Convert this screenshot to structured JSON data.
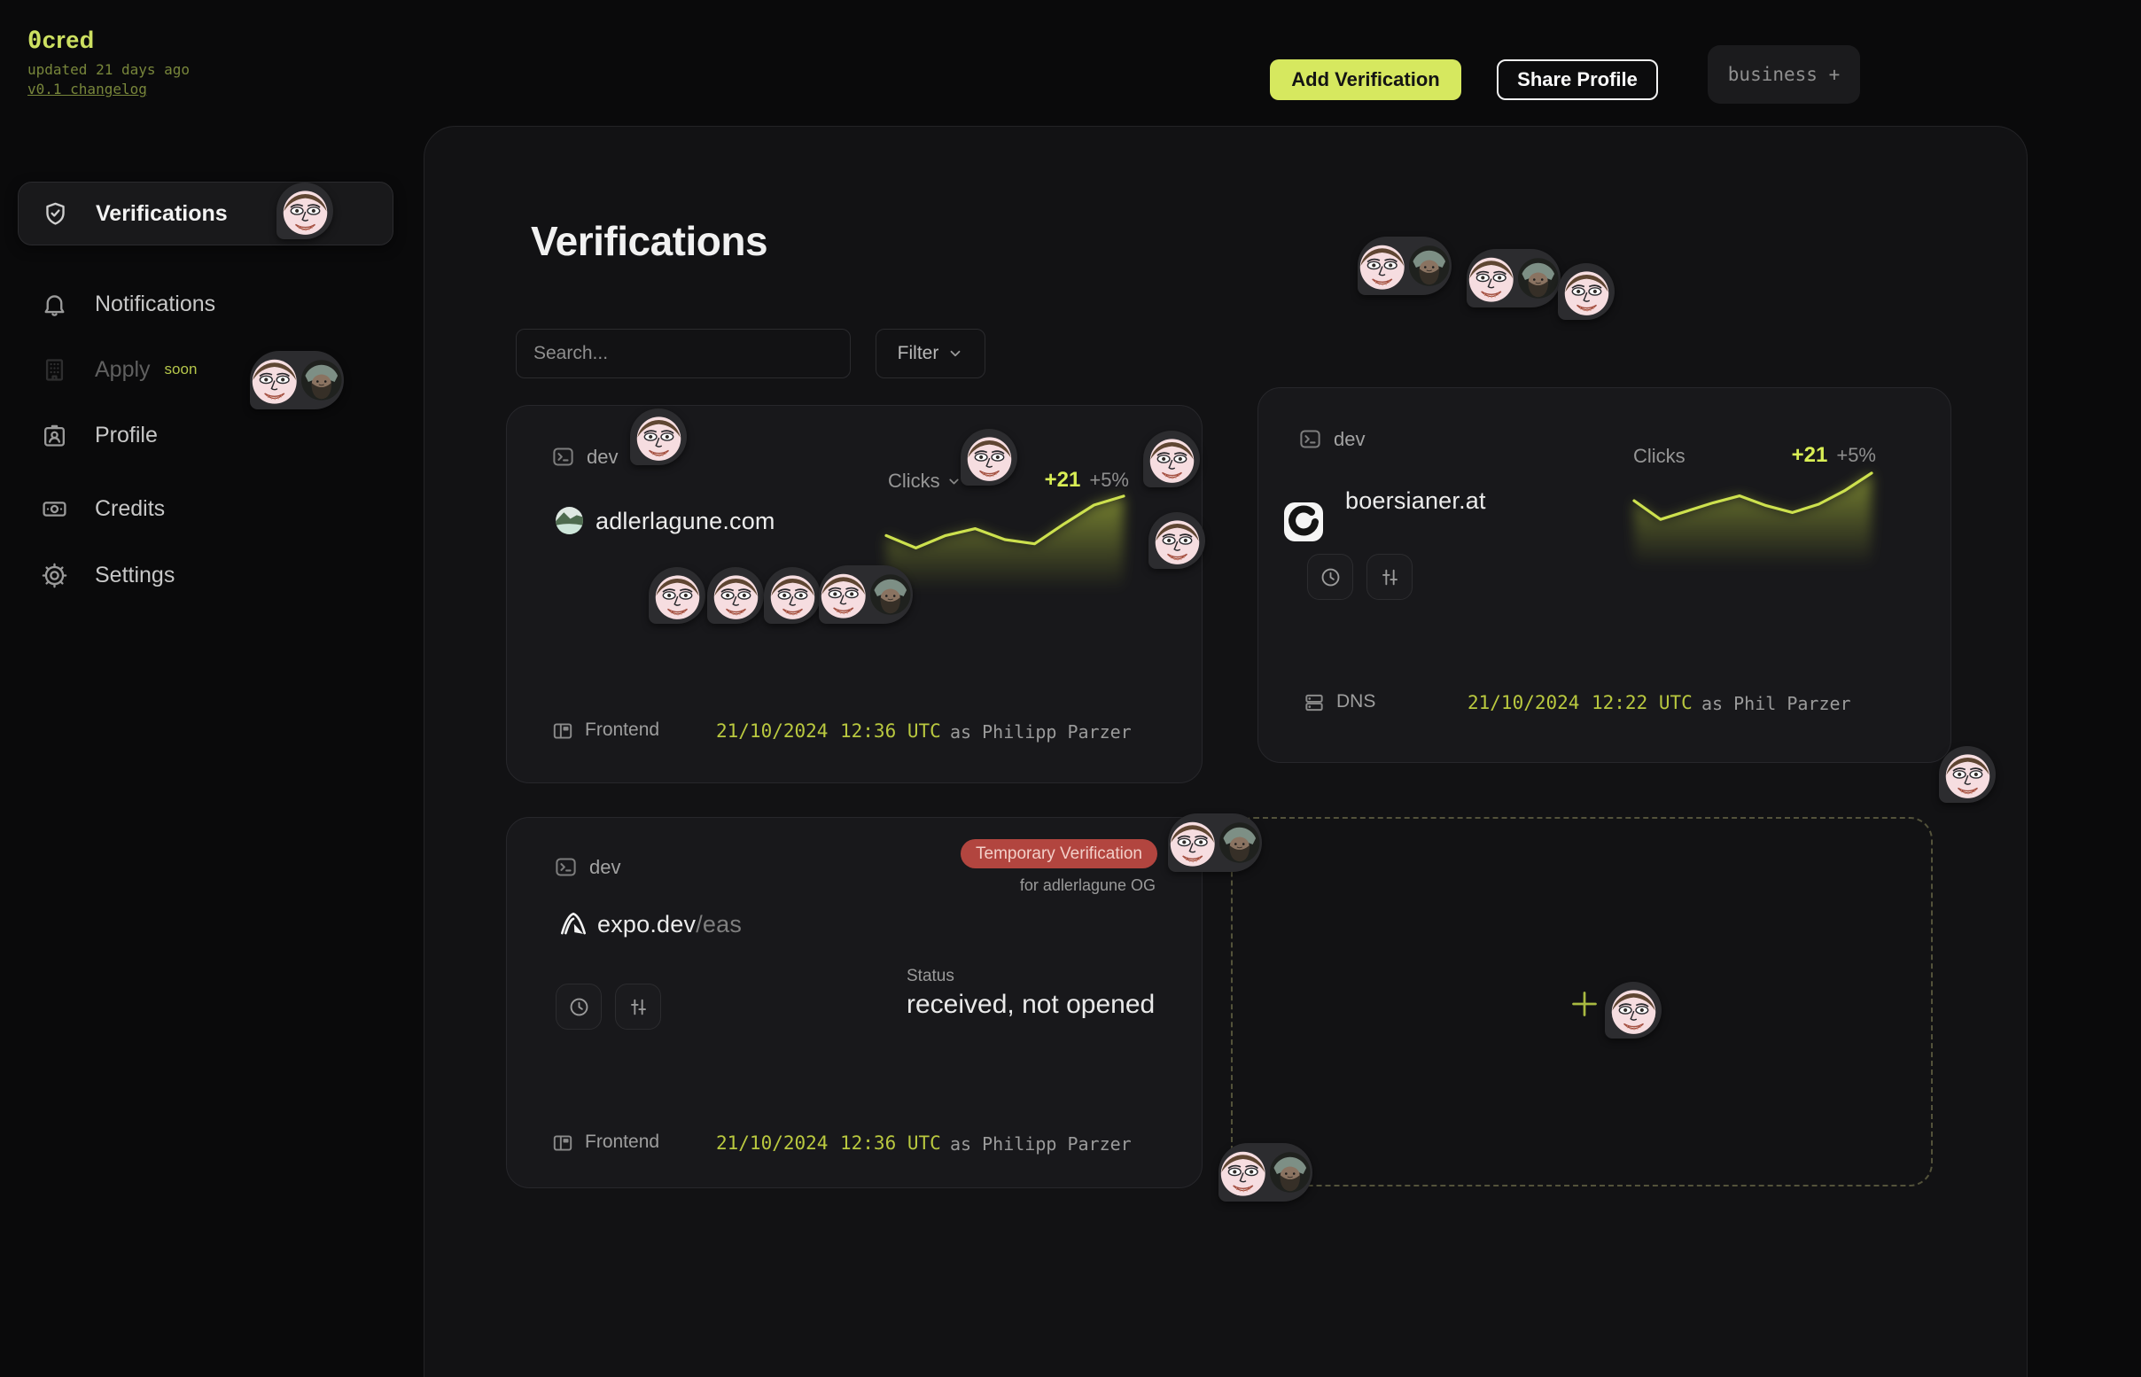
{
  "brand": {
    "logo_zero": "0",
    "logo_rest": "cred",
    "updated": "updated 21 days ago",
    "changelog": "v0.1 changelog"
  },
  "header": {
    "add_verification": "Add Verification",
    "share_profile": "Share Profile",
    "business": "business +"
  },
  "sidebar": {
    "items": [
      {
        "label": "Verifications",
        "icon": "shield-check-icon",
        "active": true
      },
      {
        "label": "Notifications",
        "icon": "bell-icon"
      },
      {
        "label": "Apply",
        "icon": "building-icon",
        "badge": "soon",
        "disabled": true
      },
      {
        "label": "Profile",
        "icon": "id-card-icon"
      },
      {
        "label": "Credits",
        "icon": "banknote-icon"
      },
      {
        "label": "Settings",
        "icon": "gear-icon"
      }
    ]
  },
  "main": {
    "title": "Verifications",
    "search_placeholder": "Search...",
    "filter_label": "Filter"
  },
  "colors": {
    "accent": "#d6e85f",
    "spark_line": "#cde14e",
    "delta": "#d9ee55",
    "date": "#bac93f",
    "badge_red_bg": "#b2453f",
    "badge_red_text": "#f3cfc8"
  },
  "cards": [
    {
      "env": "dev",
      "domain": "adlerlagune.com",
      "metric_label": "Clicks",
      "delta": "+21",
      "delta_pct": "+5%",
      "source": "Frontend",
      "date": "21/10/2024",
      "time": "12:36 UTC",
      "as_author": "as Philipp Parzer",
      "trend": [
        0.62,
        0.8,
        0.62,
        0.52,
        0.68,
        0.74,
        0.45,
        0.18,
        0.05
      ]
    },
    {
      "env": "dev",
      "domain": "boersianer.at",
      "metric_label": "Clicks",
      "delta": "+21",
      "delta_pct": "+5%",
      "source": "DNS",
      "date": "21/10/2024",
      "time": "12:22 UTC",
      "as_author": "as Phil Parzer",
      "trend": [
        0.45,
        0.72,
        0.6,
        0.48,
        0.38,
        0.52,
        0.62,
        0.5,
        0.3,
        0.05
      ]
    },
    {
      "env": "dev",
      "domain": "expo.dev",
      "domain_suffix": "/eas",
      "badge": "Temporary Verification",
      "badge_sub": "for adlerlagune OG",
      "status_label": "Status",
      "status_value": "received, not opened",
      "source": "Frontend",
      "date": "21/10/2024",
      "time": "12:36 UTC",
      "as_author": "as Philipp Parzer"
    }
  ]
}
